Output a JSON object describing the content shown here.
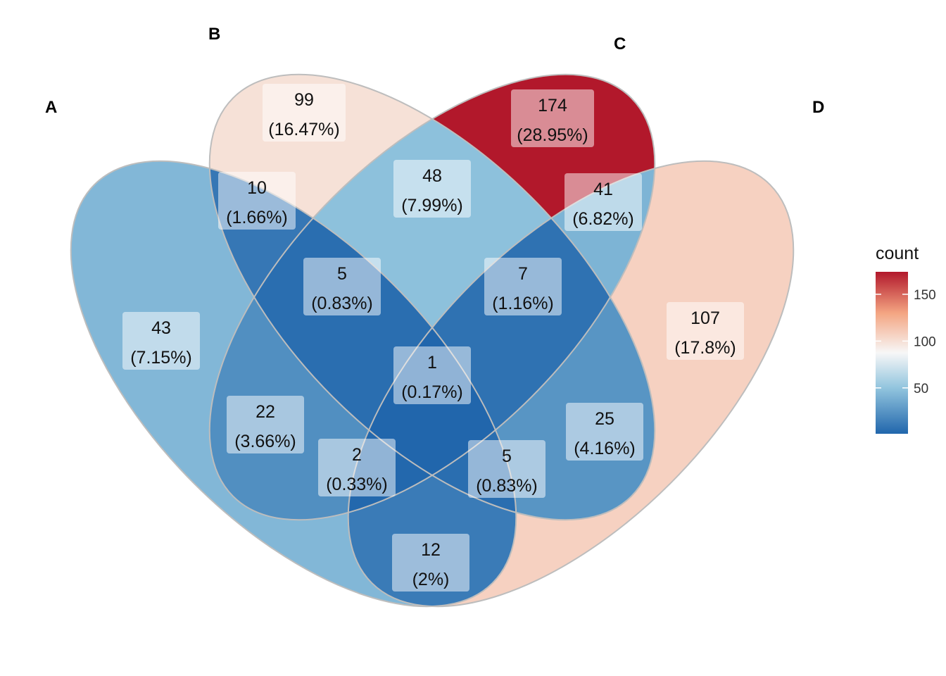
{
  "chart_data": {
    "type": "venn",
    "sets": [
      {
        "id": "A",
        "label": "A"
      },
      {
        "id": "B",
        "label": "B"
      },
      {
        "id": "C",
        "label": "C"
      },
      {
        "id": "D",
        "label": "D"
      }
    ],
    "regions": [
      {
        "sets": [
          "A"
        ],
        "count": "43",
        "percent": "(7.15%)",
        "value": 43
      },
      {
        "sets": [
          "B"
        ],
        "count": "99",
        "percent": "(16.47%)",
        "value": 99
      },
      {
        "sets": [
          "C"
        ],
        "count": "174",
        "percent": "(28.95%)",
        "value": 174
      },
      {
        "sets": [
          "D"
        ],
        "count": "107",
        "percent": "(17.8%)",
        "value": 107
      },
      {
        "sets": [
          "A",
          "B"
        ],
        "count": "10",
        "percent": "(1.66%)",
        "value": 10
      },
      {
        "sets": [
          "B",
          "C"
        ],
        "count": "48",
        "percent": "(7.99%)",
        "value": 48
      },
      {
        "sets": [
          "C",
          "D"
        ],
        "count": "41",
        "percent": "(6.82%)",
        "value": 41
      },
      {
        "sets": [
          "A",
          "B",
          "C"
        ],
        "count": "5",
        "percent": "(0.83%)",
        "value": 5
      },
      {
        "sets": [
          "B",
          "C",
          "D"
        ],
        "count": "7",
        "percent": "(1.16%)",
        "value": 7
      },
      {
        "sets": [
          "A",
          "B",
          "C",
          "D"
        ],
        "count": "1",
        "percent": "(0.17%)",
        "value": 1
      },
      {
        "sets": [
          "A",
          "C"
        ],
        "count": "22",
        "percent": "(3.66%)",
        "value": 22
      },
      {
        "sets": [
          "B",
          "D"
        ],
        "count": "25",
        "percent": "(4.16%)",
        "value": 25
      },
      {
        "sets": [
          "A",
          "C",
          "D"
        ],
        "count": "2",
        "percent": "(0.33%)",
        "value": 2
      },
      {
        "sets": [
          "A",
          "B",
          "D"
        ],
        "count": "5",
        "percent": "(0.83%)",
        "value": 5
      },
      {
        "sets": [
          "A",
          "D"
        ],
        "count": "12",
        "percent": "(2%)",
        "value": 12
      }
    ],
    "legend": {
      "title": "count",
      "ticks": [
        "50",
        "100",
        "150"
      ],
      "tick_values": [
        50,
        100,
        150
      ],
      "range": [
        1,
        174
      ],
      "colors": {
        "low": "#2166ac",
        "mid_low": "#92c5de",
        "mid": "#f7f7f7",
        "mid_high": "#f4a582",
        "high": "#b2182b"
      }
    },
    "outline_color": "#bdbdbd"
  }
}
